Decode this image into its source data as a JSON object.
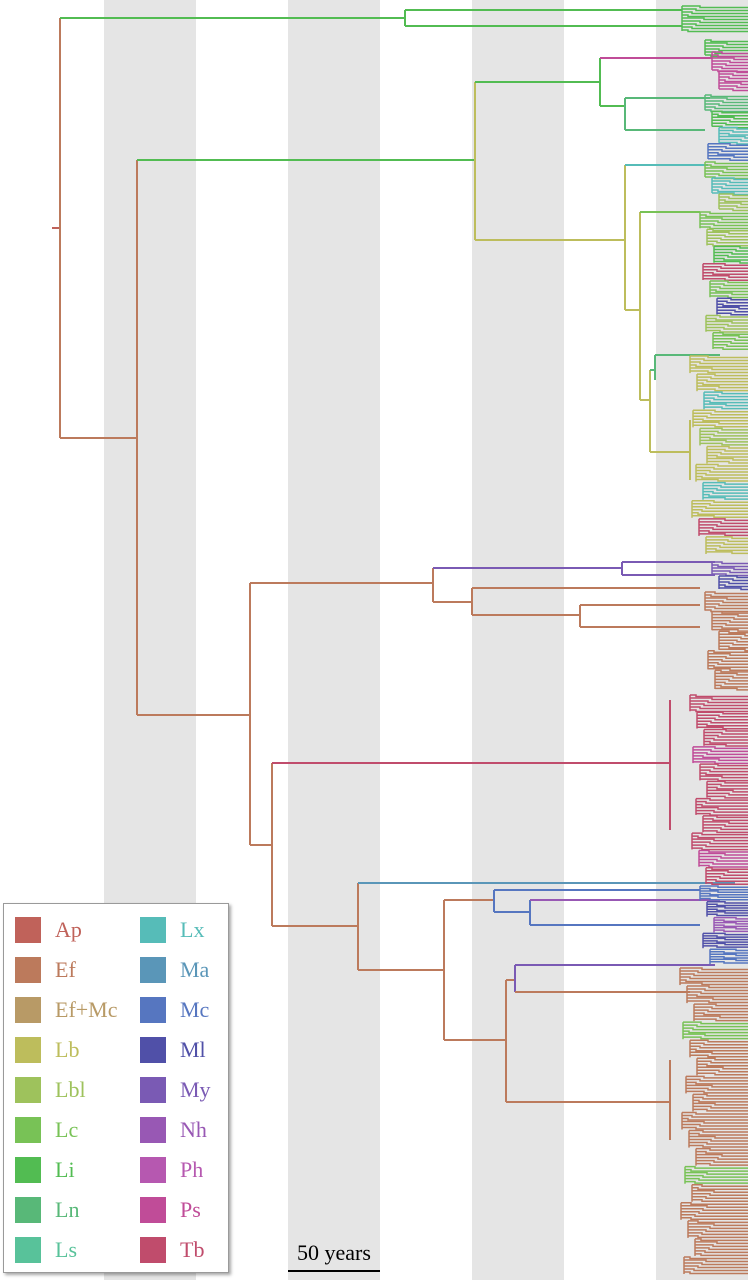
{
  "scale_bar": {
    "label": "50 years"
  },
  "legend": [
    {
      "code": "Ap",
      "color": "#c0625a"
    },
    {
      "code": "Ef",
      "color": "#bc7a5c"
    },
    {
      "code": "Ef+Mc",
      "color": "#b89a66"
    },
    {
      "code": "Lb",
      "color": "#bdbd5c"
    },
    {
      "code": "Lbl",
      "color": "#9ec25c"
    },
    {
      "code": "Lc",
      "color": "#78c256"
    },
    {
      "code": "Li",
      "color": "#52bc52"
    },
    {
      "code": "Ln",
      "color": "#58b878"
    },
    {
      "code": "Ls",
      "color": "#58c29a"
    },
    {
      "code": "Lx",
      "color": "#56bcb8"
    },
    {
      "code": "Ma",
      "color": "#5a96b8"
    },
    {
      "code": "Mc",
      "color": "#5676c0"
    },
    {
      "code": "Ml",
      "color": "#5050a8"
    },
    {
      "code": "My",
      "color": "#7a5ab4"
    },
    {
      "code": "Nh",
      "color": "#9858b4"
    },
    {
      "code": "Ph",
      "color": "#b658b0"
    },
    {
      "code": "Ps",
      "color": "#c04c98"
    },
    {
      "code": "Tb",
      "color": "#c04c6c"
    }
  ]
}
